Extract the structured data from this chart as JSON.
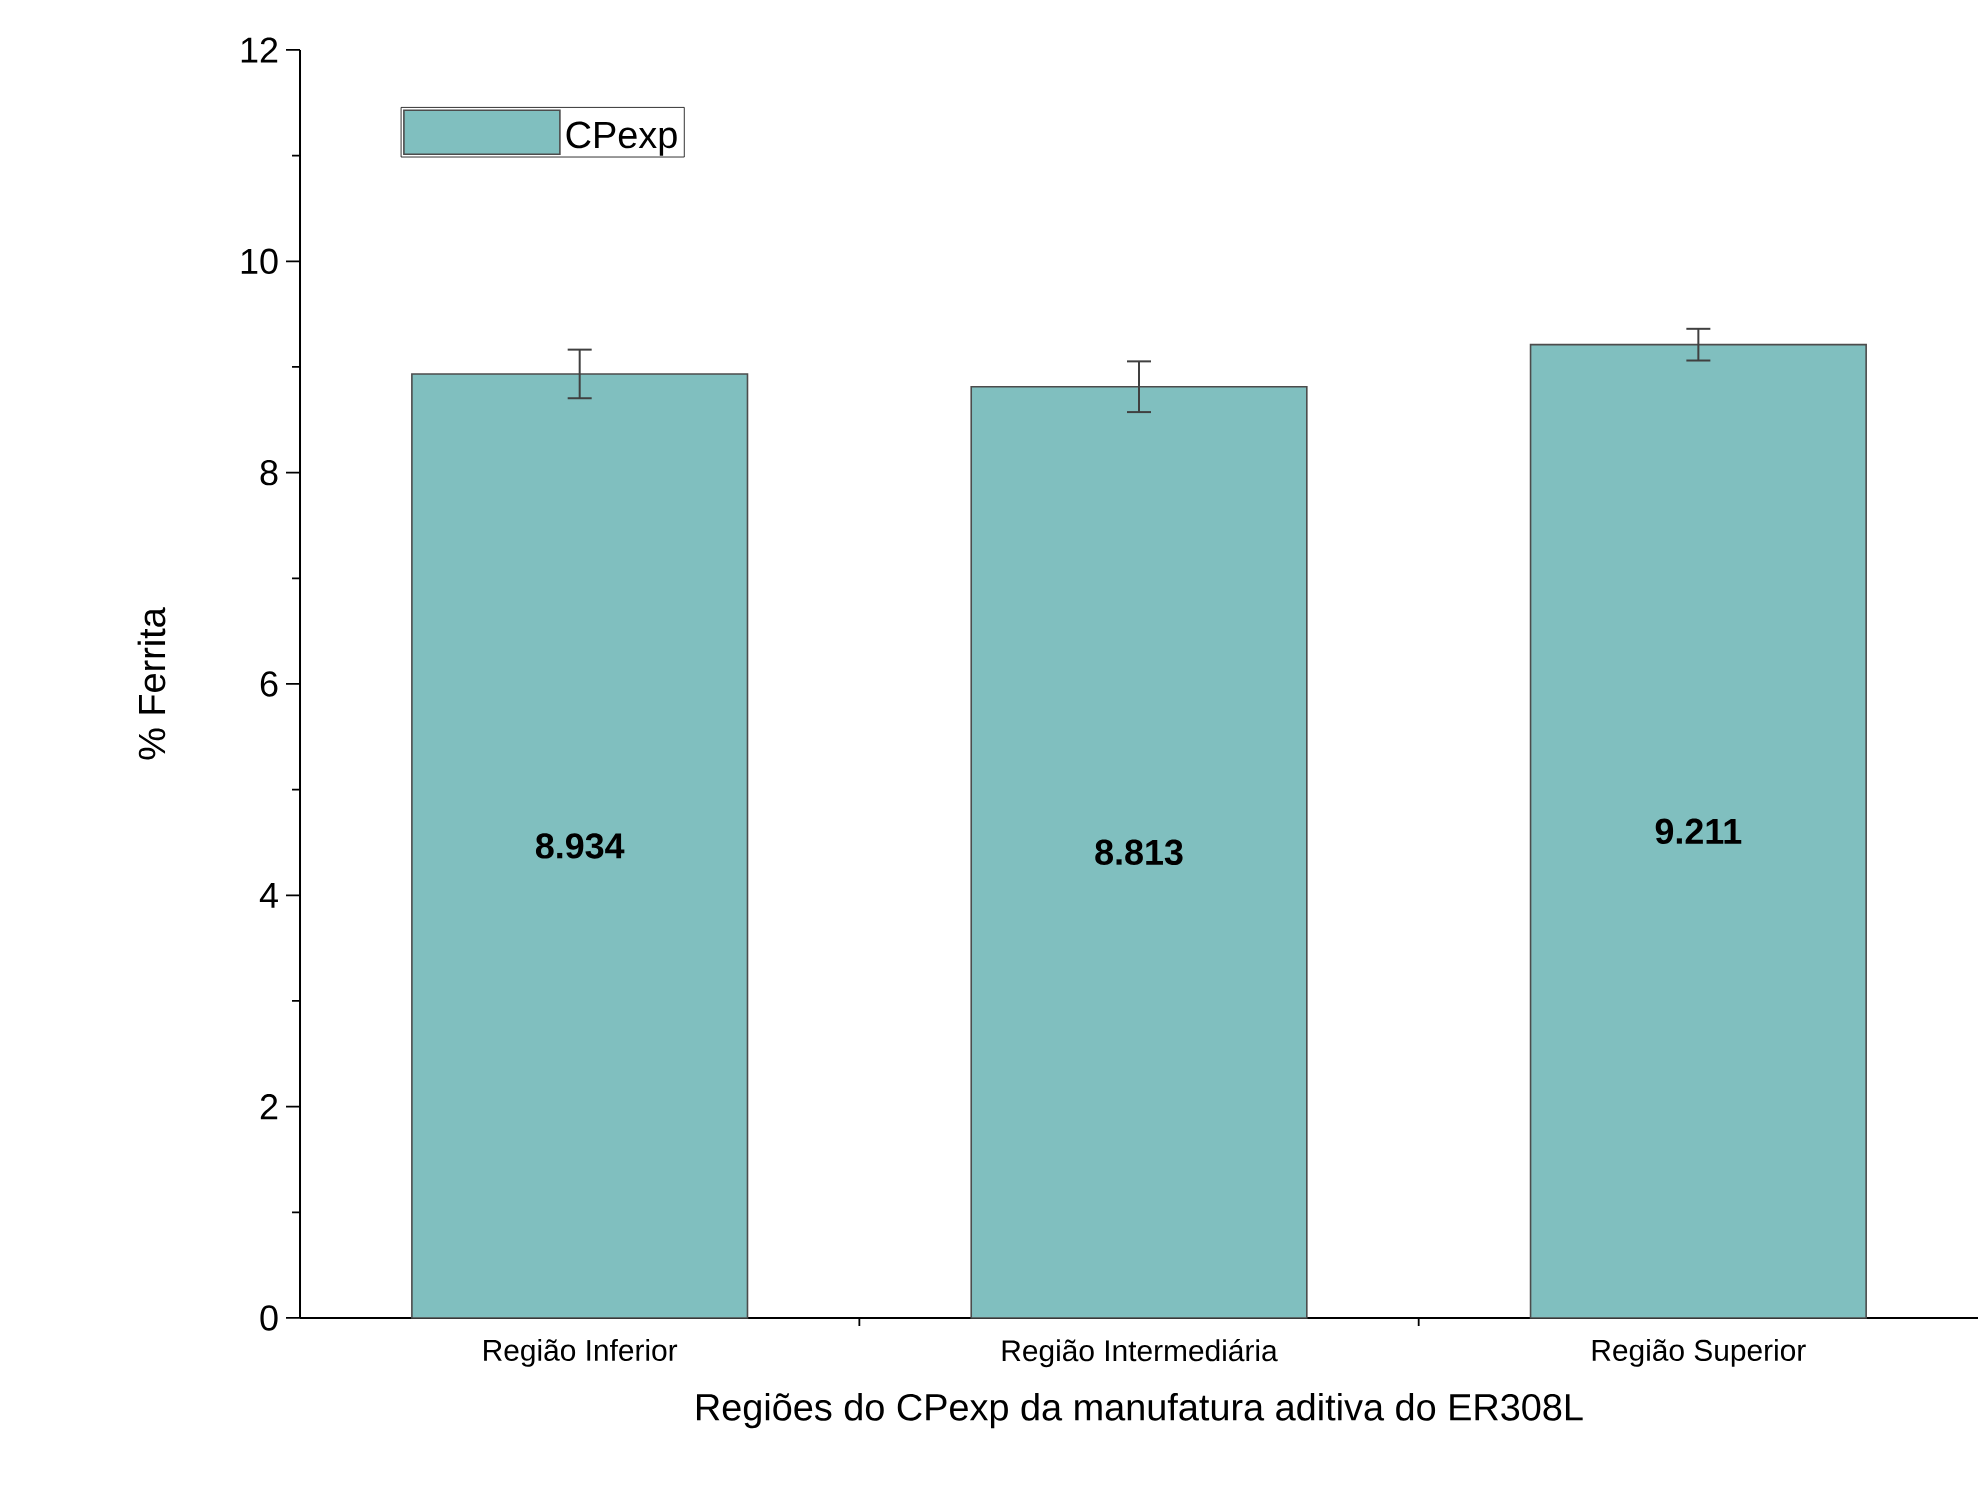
{
  "chart_data": {
    "type": "bar",
    "xlabel": "Regiões do CPexp da manufatura aditiva do ER308L",
    "ylabel": "% Ferrita",
    "categories": [
      "Região Inferior",
      "Região Intermediária",
      "Região Superior"
    ],
    "series": [
      {
        "name": "CPexp",
        "color": "#80bfbf",
        "values": [
          8.934,
          8.813,
          9.211
        ],
        "errors": [
          0.23,
          0.24,
          0.15
        ]
      }
    ],
    "ylim": [
      0,
      12
    ],
    "yticks": [
      0,
      2,
      4,
      6,
      8,
      10,
      12
    ],
    "data_labels": true,
    "legend": "top left",
    "grid": false
  }
}
